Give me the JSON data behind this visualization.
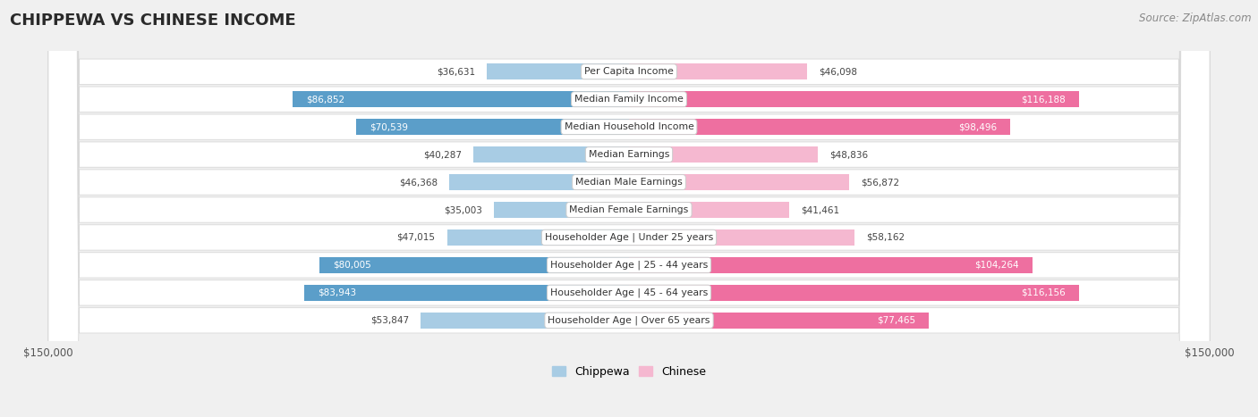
{
  "title": "CHIPPEWA VS CHINESE INCOME",
  "source": "Source: ZipAtlas.com",
  "categories": [
    "Per Capita Income",
    "Median Family Income",
    "Median Household Income",
    "Median Earnings",
    "Median Male Earnings",
    "Median Female Earnings",
    "Householder Age | Under 25 years",
    "Householder Age | 25 - 44 years",
    "Householder Age | 45 - 64 years",
    "Householder Age | Over 65 years"
  ],
  "chippewa_values": [
    36631,
    86852,
    70539,
    40287,
    46368,
    35003,
    47015,
    80005,
    83943,
    53847
  ],
  "chinese_values": [
    46098,
    116188,
    98496,
    48836,
    56872,
    41461,
    58162,
    104264,
    116156,
    77465
  ],
  "chippewa_color_light": "#a8cce4",
  "chippewa_color_dark": "#5b9ec9",
  "chinese_color_light": "#f5b8d0",
  "chinese_color_dark": "#ee6fa0",
  "max_value": 150000,
  "bg_color": "#f0f0f0",
  "row_bg_color": "#ffffff",
  "row_border_color": "#d8d8d8",
  "title_color": "#333333",
  "value_color_dark": "#444444",
  "value_color_light": "#ffffff",
  "legend_chippewa": "Chippewa",
  "legend_chinese": "Chinese",
  "dark_threshold": 65000
}
